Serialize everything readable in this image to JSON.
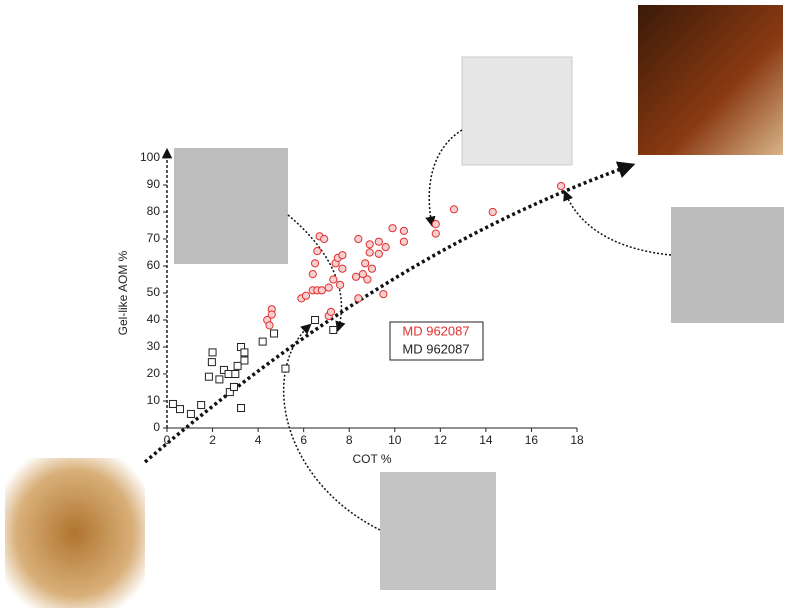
{
  "chart_data": {
    "type": "scatter",
    "x_label": "COT %",
    "y_label": "Gel-like AOM %",
    "xlim": [
      0,
      18
    ],
    "ylim": [
      0,
      100
    ],
    "xticks": [
      0,
      2,
      4,
      6,
      8,
      10,
      12,
      14,
      16,
      18
    ],
    "yticks": [
      0,
      10,
      20,
      30,
      40,
      50,
      60,
      70,
      80,
      90,
      100
    ],
    "series": [
      {
        "name": "MD 962087",
        "color": "#e03030",
        "marker": "circle",
        "x": [
          4.4,
          4.5,
          4.6,
          4.6,
          5.9,
          6.1,
          6.4,
          6.6,
          6.8,
          6.4,
          6.5,
          6.6,
          6.7,
          6.9,
          7.1,
          7.1,
          7.2,
          7.3,
          7.4,
          7.5,
          7.7,
          7.7,
          7.6,
          8.3,
          8.4,
          8.4,
          8.6,
          8.7,
          8.8,
          8.9,
          8.9,
          9.0,
          9.3,
          9.3,
          9.5,
          9.6,
          9.9,
          10.4,
          10.4,
          11.8,
          11.8,
          12.6,
          14.3,
          17.3
        ],
        "values": [
          40,
          38,
          44,
          42,
          48,
          49,
          51,
          51,
          51,
          57,
          61,
          65.5,
          71,
          70,
          52,
          41.5,
          43,
          55,
          61,
          63,
          59,
          64,
          53,
          56,
          48,
          70,
          57,
          61,
          55,
          65,
          68,
          59,
          69,
          64.5,
          49.6,
          67,
          74,
          73,
          69,
          75.5,
          72,
          81,
          80,
          89.6
        ]
      },
      {
        "name": "MD 962087",
        "color": "#222222",
        "marker": "square",
        "x": [
          0.26,
          0.57,
          1.05,
          1.5,
          1.84,
          2.0,
          1.97,
          2.3,
          2.5,
          2.7,
          2.76,
          2.94,
          3.0,
          3.1,
          3.25,
          3.4,
          3.4,
          3.25,
          4.2,
          4.7,
          5.2,
          6.5,
          7.3
        ],
        "values": [
          8.9,
          7,
          5.2,
          8.5,
          19,
          28,
          24.4,
          18,
          21.5,
          20,
          13.3,
          15.2,
          20,
          23,
          30,
          28,
          25,
          7.4,
          32,
          35,
          22,
          40,
          36.3
        ]
      }
    ]
  }
}
